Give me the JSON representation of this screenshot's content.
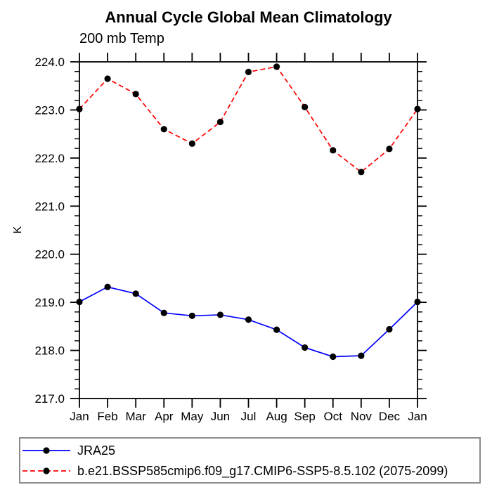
{
  "figure": {
    "title": "Annual Cycle Global Mean Climatology",
    "subtitle": "200 mb Temp"
  },
  "chart_data": {
    "type": "line",
    "title": "Annual Cycle Global Mean Climatology",
    "subtitle": "200 mb Temp",
    "xlabel": "",
    "ylabel": "K",
    "ylim": [
      217.0,
      224.0
    ],
    "ytick_interval": 1.0,
    "yminor_interval": 0.2,
    "ytick_labels": [
      "217.0",
      "218.0",
      "219.0",
      "220.0",
      "221.0",
      "222.0",
      "223.0",
      "224.0"
    ],
    "categories": [
      "Jan",
      "Feb",
      "Mar",
      "Apr",
      "May",
      "Jun",
      "Jul",
      "Aug",
      "Sep",
      "Oct",
      "Nov",
      "Dec",
      "Jan"
    ],
    "grid": false,
    "legend_position": "bottom-left",
    "series": [
      {
        "name": "JRA25",
        "color": "#0000ff",
        "line_style": "solid",
        "marker": "filled-circle",
        "marker_color": "#000000",
        "values": [
          219.01,
          219.32,
          219.18,
          218.78,
          218.72,
          218.74,
          218.64,
          218.43,
          218.06,
          217.87,
          217.89,
          218.44,
          219.01
        ]
      },
      {
        "name": "b.e21.BSSP585cmip6.f09_g17.CMIP6-SSP5-8.5.102 (2075-2099)",
        "color": "#ff0000",
        "line_style": "dashed",
        "marker": "filled-circle",
        "marker_color": "#000000",
        "values": [
          223.02,
          223.65,
          223.33,
          222.6,
          222.3,
          222.75,
          223.79,
          223.9,
          223.06,
          222.16,
          221.71,
          222.19,
          223.02
        ]
      }
    ]
  },
  "colors": {
    "axis": "#000000",
    "text": "#000000",
    "background": "#ffffff",
    "legend_border": "#8c8c8c",
    "series_blue": "#0000ff",
    "series_red": "#ff0000",
    "marker": "#000000"
  }
}
